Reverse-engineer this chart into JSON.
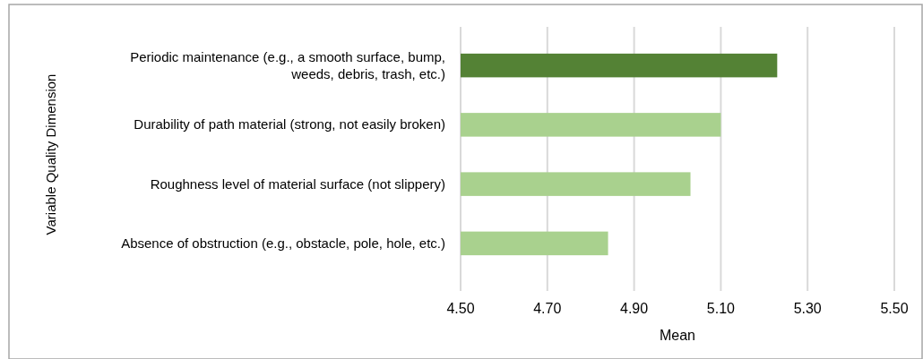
{
  "chart_data": {
    "type": "bar",
    "orientation": "horizontal",
    "ylabel": "Variable Quality Dimension",
    "xlabel": "Mean",
    "categories": [
      "Periodic maintenance (e.g., a smooth surface, bump, weeds, debris, trash, etc.)",
      "Durability of path material (strong, not easily broken)",
      "Roughness level of material surface (not slippery)",
      "Absence of obstruction (e.g., obstacle, pole, hole, etc.)"
    ],
    "values": [
      5.23,
      5.1,
      5.03,
      4.84
    ],
    "colors": [
      "#548235",
      "#a9d18e",
      "#a9d18e",
      "#a9d18e"
    ],
    "xlim": [
      4.5,
      5.5
    ],
    "xticks": [
      {
        "value": 4.5,
        "label": "4.50"
      },
      {
        "value": 4.7,
        "label": "4.70"
      },
      {
        "value": 4.9,
        "label": "4.90"
      },
      {
        "value": 5.1,
        "label": "5.10"
      },
      {
        "value": 5.3,
        "label": "5.30"
      },
      {
        "value": 5.5,
        "label": "5.50"
      }
    ],
    "grid": "x"
  }
}
